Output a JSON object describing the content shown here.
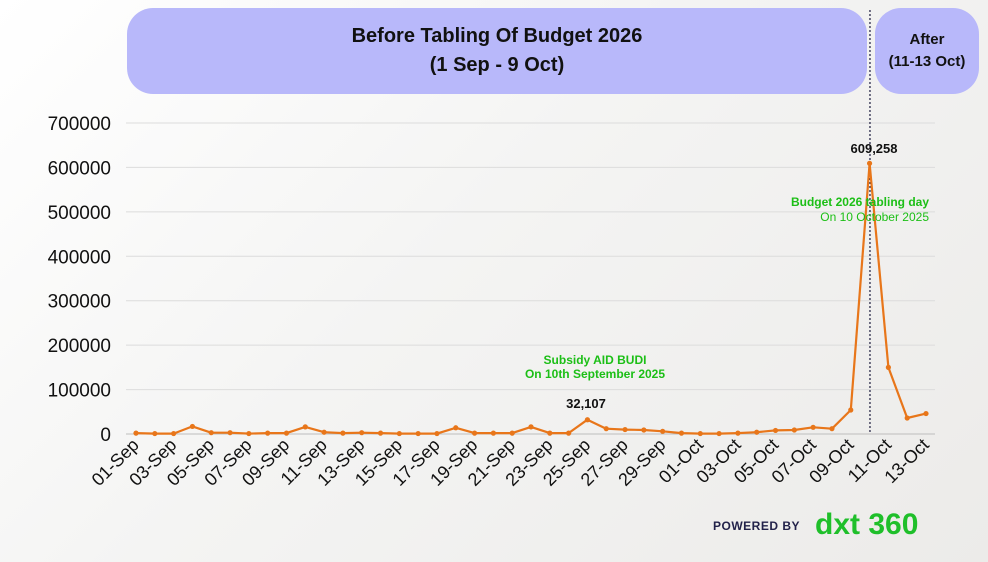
{
  "banners": {
    "before_line1": "Before Tabling Of Budget 2026",
    "before_line2": "(1 Sep - 9 Oct)",
    "after_line1": "After",
    "after_line2": "(11-13 Oct)",
    "color": "#b8b8fa"
  },
  "annotations": {
    "subsidy_line1": "Subsidy AID BUDI",
    "subsidy_line2": "On 10th September 2025",
    "budget_line1": "Budget 2026 tabling day",
    "budget_line2": "On 10 October 2025",
    "peak_label": "609,258",
    "secondary_label": "32,107",
    "annotation_color": "#1cbf16"
  },
  "footer": {
    "powered_by": "POWERED BY",
    "logo": "dxt 360"
  },
  "chart_data": {
    "type": "line",
    "line_color": "#e8761a",
    "grid": true,
    "ylim": [
      0,
      700000
    ],
    "yticks": [
      "0",
      "100000",
      "200000",
      "300000",
      "400000",
      "500000",
      "600000",
      "700000"
    ],
    "tick_labels_x": [
      "01-Sep",
      "03-Sep",
      "05-Sep",
      "07-Sep",
      "09-Sep",
      "11-Sep",
      "13-Sep",
      "15-Sep",
      "17-Sep",
      "19-Sep",
      "21-Sep",
      "23-Sep",
      "25-Sep",
      "27-Sep",
      "29-Sep",
      "01-Oct",
      "03-Oct",
      "05-Oct",
      "07-Oct",
      "09-Oct",
      "11-Oct",
      "13-Oct"
    ],
    "divider_after": "10-Oct",
    "categories": [
      "01-Sep",
      "02-Sep",
      "03-Sep",
      "04-Sep",
      "05-Sep",
      "06-Sep",
      "07-Sep",
      "08-Sep",
      "09-Sep",
      "10-Sep",
      "11-Sep",
      "12-Sep",
      "13-Sep",
      "14-Sep",
      "15-Sep",
      "16-Sep",
      "17-Sep",
      "18-Sep",
      "19-Sep",
      "20-Sep",
      "21-Sep",
      "22-Sep",
      "23-Sep",
      "24-Sep",
      "25-Sep",
      "26-Sep",
      "27-Sep",
      "28-Sep",
      "29-Sep",
      "30-Sep",
      "01-Oct",
      "02-Oct",
      "03-Oct",
      "04-Oct",
      "05-Oct",
      "06-Oct",
      "07-Oct",
      "08-Oct",
      "09-Oct",
      "10-Oct",
      "11-Oct",
      "12-Oct",
      "13-Oct"
    ],
    "values": [
      2000,
      1000,
      1000,
      17000,
      3000,
      3000,
      1000,
      2000,
      2000,
      16000,
      4000,
      2000,
      3000,
      2000,
      1000,
      1000,
      1000,
      14000,
      2000,
      2000,
      2000,
      16000,
      2000,
      2000,
      32107,
      12000,
      10000,
      9000,
      6000,
      2000,
      1000,
      1000,
      2000,
      4000,
      8000,
      9000,
      15000,
      12000,
      54000,
      609258,
      150000,
      36000,
      46000
    ]
  }
}
